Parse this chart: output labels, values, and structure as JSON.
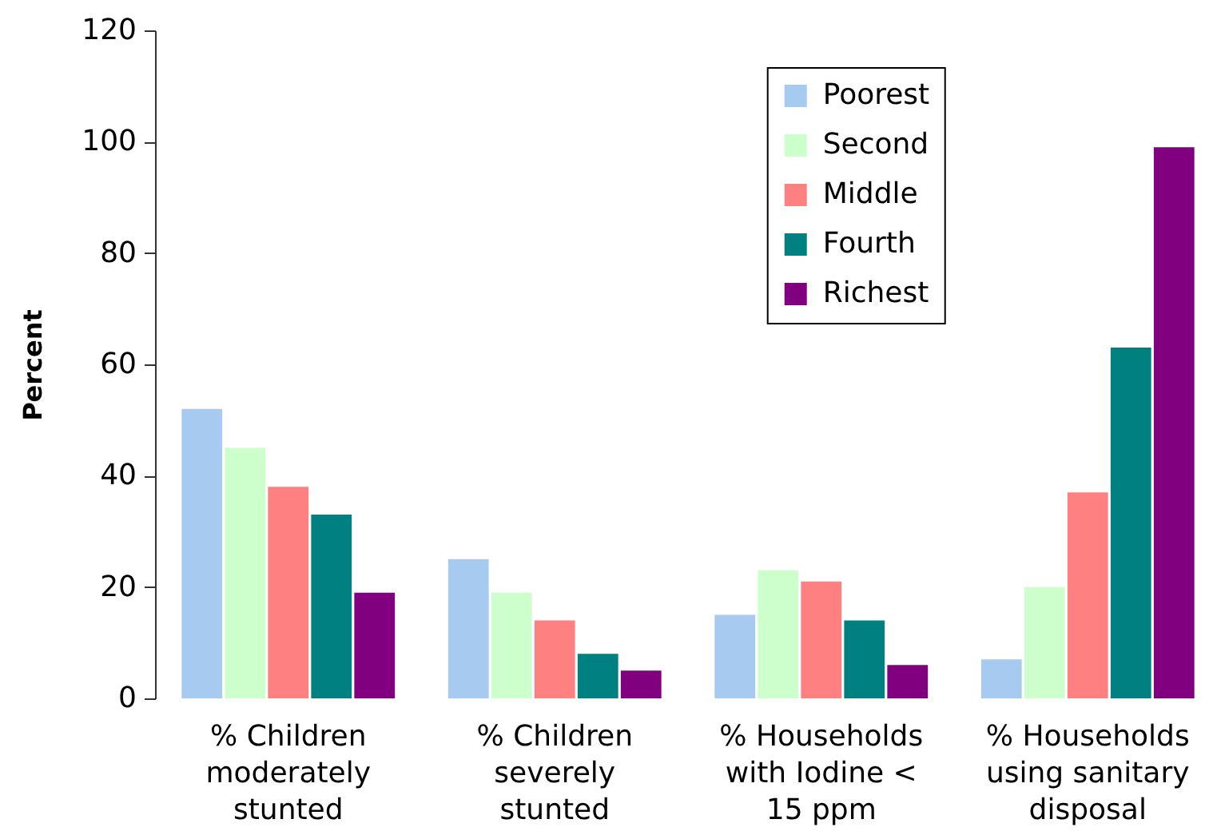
{
  "chart_data": {
    "type": "bar",
    "ylabel": "Percent",
    "categories": [
      "% Children moderately stunted",
      "% Children severely stunted",
      "% Households with Iodine < 15 ppm",
      "% Households using sanitary disposal"
    ],
    "series": [
      {
        "name": "Poorest",
        "color": "#a6caf0",
        "values": [
          52,
          25,
          15,
          7
        ]
      },
      {
        "name": "Second",
        "color": "#ccffcc",
        "values": [
          45,
          19,
          23,
          20
        ]
      },
      {
        "name": "Middle",
        "color": "#ff8080",
        "values": [
          38,
          14,
          21,
          37
        ]
      },
      {
        "name": "Fourth",
        "color": "#008080",
        "values": [
          33,
          8,
          14,
          63
        ]
      },
      {
        "name": "Richest",
        "color": "#800080",
        "values": [
          19,
          5,
          6,
          99
        ]
      }
    ],
    "ylim": [
      0,
      120
    ],
    "yticks": [
      0,
      20,
      40,
      60,
      80,
      100,
      120
    ],
    "grid": false,
    "legend": "top right"
  }
}
